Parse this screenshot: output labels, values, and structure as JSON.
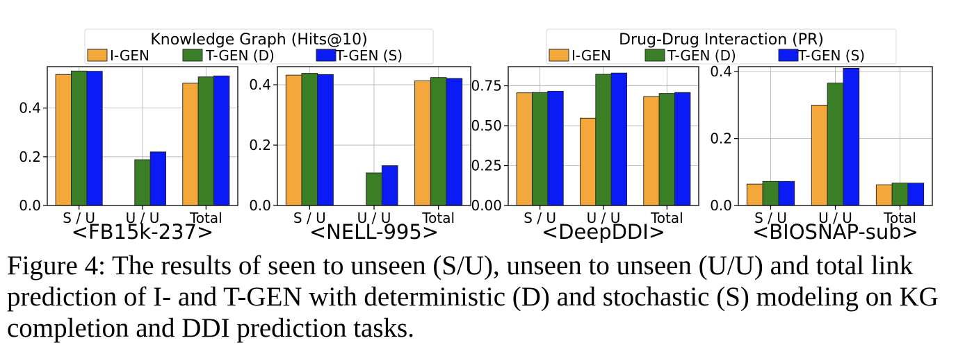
{
  "legends": [
    {
      "title": "Knowledge Graph (Hits@10)",
      "entries": [
        "I-GEN",
        "T-GEN (D)",
        "T-GEN (S)"
      ]
    },
    {
      "title": "Drug-Drug Interaction (PR)",
      "entries": [
        "I-GEN",
        "T-GEN (D)",
        "T-GEN (S)"
      ]
    }
  ],
  "colors": {
    "I-GEN": "#f4a83c",
    "T-GEN (D)": "#3a7f25",
    "T-GEN (S)": "#0a1bf5"
  },
  "chart_data": [
    {
      "type": "bar",
      "xlabel": "<FB15k-237>",
      "categories": [
        "S / U",
        "U / U",
        "Total"
      ],
      "series": [
        {
          "name": "I-GEN",
          "values": [
            0.538,
            0.0,
            0.502
          ]
        },
        {
          "name": "T-GEN (D)",
          "values": [
            0.552,
            0.188,
            0.528
          ]
        },
        {
          "name": "T-GEN (S)",
          "values": [
            0.551,
            0.22,
            0.532
          ]
        }
      ],
      "ylim": [
        0,
        0.57
      ],
      "yticks": [
        0.0,
        0.2,
        0.4
      ],
      "ytick_labels": [
        "0.0",
        "0.2",
        "0.4"
      ],
      "grid": true
    },
    {
      "type": "bar",
      "xlabel": "<NELL-995>",
      "categories": [
        "S / U",
        "U / U",
        "Total"
      ],
      "series": [
        {
          "name": "I-GEN",
          "values": [
            0.432,
            0.0,
            0.413
          ]
        },
        {
          "name": "T-GEN (D)",
          "values": [
            0.438,
            0.108,
            0.424
          ]
        },
        {
          "name": "T-GEN (S)",
          "values": [
            0.434,
            0.132,
            0.421
          ]
        }
      ],
      "ylim": [
        0,
        0.46
      ],
      "yticks": [
        0.0,
        0.2,
        0.4
      ],
      "ytick_labels": [
        "0.0",
        "0.2",
        "0.4"
      ],
      "grid": true
    },
    {
      "type": "bar",
      "xlabel": "<DeepDDI>",
      "categories": [
        "S / U",
        "U / U",
        "Total"
      ],
      "series": [
        {
          "name": "I-GEN",
          "values": [
            0.706,
            0.547,
            0.683
          ]
        },
        {
          "name": "T-GEN (D)",
          "values": [
            0.708,
            0.822,
            0.702
          ]
        },
        {
          "name": "T-GEN (S)",
          "values": [
            0.716,
            0.83,
            0.708
          ]
        }
      ],
      "ylim": [
        0,
        0.87
      ],
      "yticks": [
        0.0,
        0.25,
        0.5,
        0.75
      ],
      "ytick_labels": [
        "0.00",
        "0.25",
        "0.50",
        "0.75"
      ],
      "grid": true
    },
    {
      "type": "bar",
      "xlabel": "<BIOSNAP-sub>",
      "categories": [
        "S / U",
        "U / U",
        "Total"
      ],
      "series": [
        {
          "name": "I-GEN",
          "values": [
            0.064,
            0.3,
            0.062
          ]
        },
        {
          "name": "T-GEN (D)",
          "values": [
            0.072,
            0.366,
            0.067
          ]
        },
        {
          "name": "T-GEN (S)",
          "values": [
            0.072,
            0.41,
            0.067
          ]
        }
      ],
      "ylim": [
        0,
        0.415
      ],
      "yticks": [
        0.0,
        0.2,
        0.4
      ],
      "ytick_labels": [
        "0.0",
        "0.2",
        "0.4"
      ],
      "grid": true
    }
  ],
  "caption": {
    "label": "Figure 4:",
    "text": "The results of seen to unseen (S/U), unseen to unseen (U/U) and total link prediction of I- and T-GEN with deterministic (D) and stochastic (S) modeling on KG completion and DDI prediction tasks."
  }
}
